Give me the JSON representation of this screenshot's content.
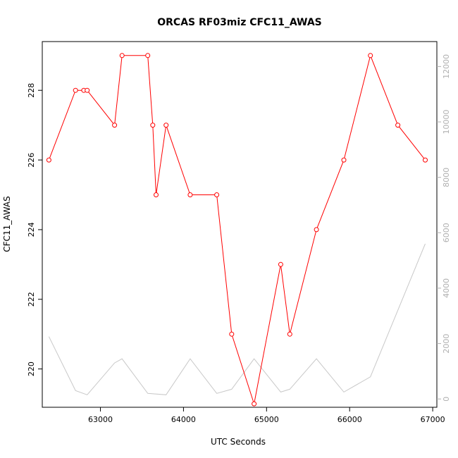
{
  "chart_data": {
    "type": "line",
    "title": "ORCAS RF03miz CFC11_AWAS",
    "xlabel": "UTC Seconds",
    "ylabel": "CFC11_AWAS",
    "xlim": [
      62300,
      67050
    ],
    "ylim": [
      218.9,
      229.4
    ],
    "x_ticks": [
      63000,
      64000,
      65000,
      66000,
      67000
    ],
    "y_ticks": [
      220,
      222,
      224,
      226,
      228
    ],
    "series": [
      {
        "color": "#ff0000",
        "markers": "open-circle",
        "x": [
          62380,
          62700,
          62800,
          62840,
          63170,
          63260,
          63570,
          63630,
          63670,
          63790,
          64080,
          64400,
          64580,
          64850,
          65170,
          65280,
          65600,
          65930,
          66250,
          66580,
          66910
        ],
        "y": [
          226,
          228,
          228,
          228,
          227,
          229,
          229,
          227,
          225,
          227,
          225,
          225,
          221,
          219,
          223,
          221,
          224,
          226,
          229,
          227,
          226
        ]
      }
    ],
    "secondary_axis": {
      "color": "#c8c8c8",
      "ylim": [
        -300,
        12900
      ],
      "y_ticks": [
        0,
        2000,
        4000,
        6000,
        8000,
        10000,
        12000
      ],
      "series": [
        {
          "color": "#c8c8c8",
          "x": [
            62380,
            62700,
            62840,
            63170,
            63260,
            63570,
            63790,
            64080,
            64400,
            64580,
            64850,
            65170,
            65280,
            65600,
            65930,
            66250,
            66910
          ],
          "y": [
            2250,
            300,
            150,
            1300,
            1450,
            200,
            150,
            1450,
            200,
            350,
            1450,
            250,
            350,
            1450,
            250,
            800,
            5600
          ]
        }
      ]
    }
  }
}
